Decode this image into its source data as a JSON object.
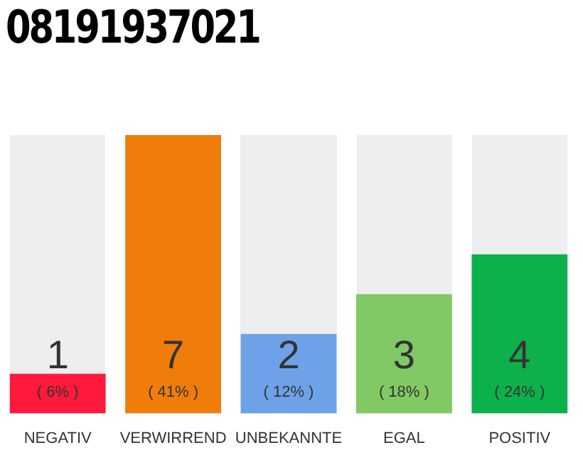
{
  "chart_data": {
    "type": "bar",
    "title": "08191937021",
    "categories": [
      "NEGATIV",
      "VERWIRREND",
      "UNBEKANNTE",
      "EGAL",
      "POSITIV"
    ],
    "values": [
      1,
      7,
      2,
      3,
      4
    ],
    "colors": [
      "#ff1a3c",
      "#f07d0a",
      "#6ea2e8",
      "#80c964",
      "#0db14b"
    ],
    "data_labels": true,
    "annotations": [
      "( 6% )",
      "( 41% )",
      "( 12% )",
      "( 18% )",
      "( 24% )"
    ],
    "grid": false,
    "legend": false
  }
}
